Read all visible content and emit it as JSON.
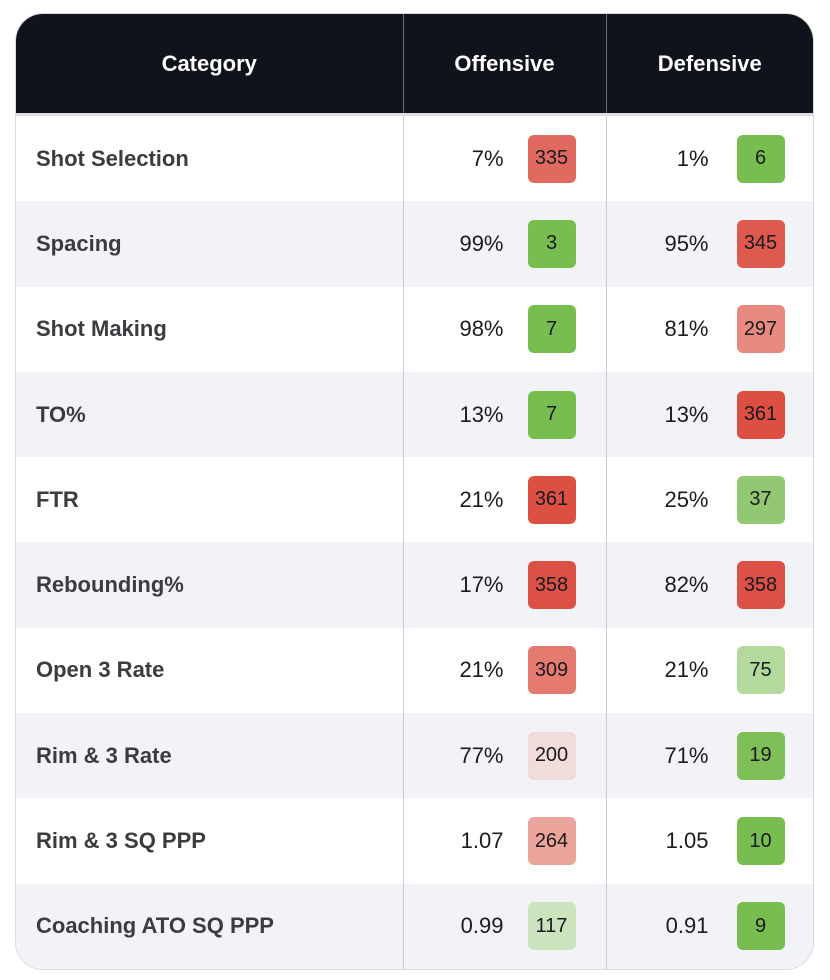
{
  "header": {
    "category": "Category",
    "offensive": "Offensive",
    "defensive": "Defensive"
  },
  "rows": [
    {
      "category": "Shot Selection",
      "off_value": "7%",
      "off_rank": "335",
      "off_color": "#e06a60",
      "def_value": "1%",
      "def_rank": "6",
      "def_color": "#78bd50"
    },
    {
      "category": "Spacing",
      "off_value": "99%",
      "off_rank": "3",
      "off_color": "#78bd50",
      "def_value": "95%",
      "def_rank": "345",
      "def_color": "#de5a4e"
    },
    {
      "category": "Shot Making",
      "off_value": "98%",
      "off_rank": "7",
      "off_color": "#78bd50",
      "def_value": "81%",
      "def_rank": "297",
      "def_color": "#e88a80"
    },
    {
      "category": "TO%",
      "off_value": "13%",
      "off_rank": "7",
      "off_color": "#78bd50",
      "def_value": "13%",
      "def_rank": "361",
      "def_color": "#dc4f42"
    },
    {
      "category": "FTR",
      "off_value": "21%",
      "off_rank": "361",
      "off_color": "#dc4f42",
      "def_value": "25%",
      "def_rank": "37",
      "def_color": "#93c873"
    },
    {
      "category": "Rebounding%",
      "off_value": "17%",
      "off_rank": "358",
      "off_color": "#dc5145",
      "def_value": "82%",
      "def_rank": "358",
      "def_color": "#dc5145"
    },
    {
      "category": "Open 3 Rate",
      "off_value": "21%",
      "off_rank": "309",
      "off_color": "#e57b70",
      "def_value": "21%",
      "def_rank": "75",
      "def_color": "#b4d99c"
    },
    {
      "category": "Rim & 3 Rate",
      "off_value": "77%",
      "off_rank": "200",
      "off_color": "#f0dcda",
      "def_value": "71%",
      "def_rank": "19",
      "def_color": "#7ebf57"
    },
    {
      "category": "Rim & 3 SQ PPP",
      "off_value": "1.07",
      "off_rank": "264",
      "off_color": "#eca59d",
      "def_value": "1.05",
      "def_rank": "10",
      "def_color": "#78bd50"
    },
    {
      "category": "Coaching ATO SQ PPP",
      "off_value": "0.99",
      "off_rank": "117",
      "off_color": "#cce4bd",
      "def_value": "0.91",
      "def_rank": "9",
      "def_color": "#78bd50"
    }
  ]
}
